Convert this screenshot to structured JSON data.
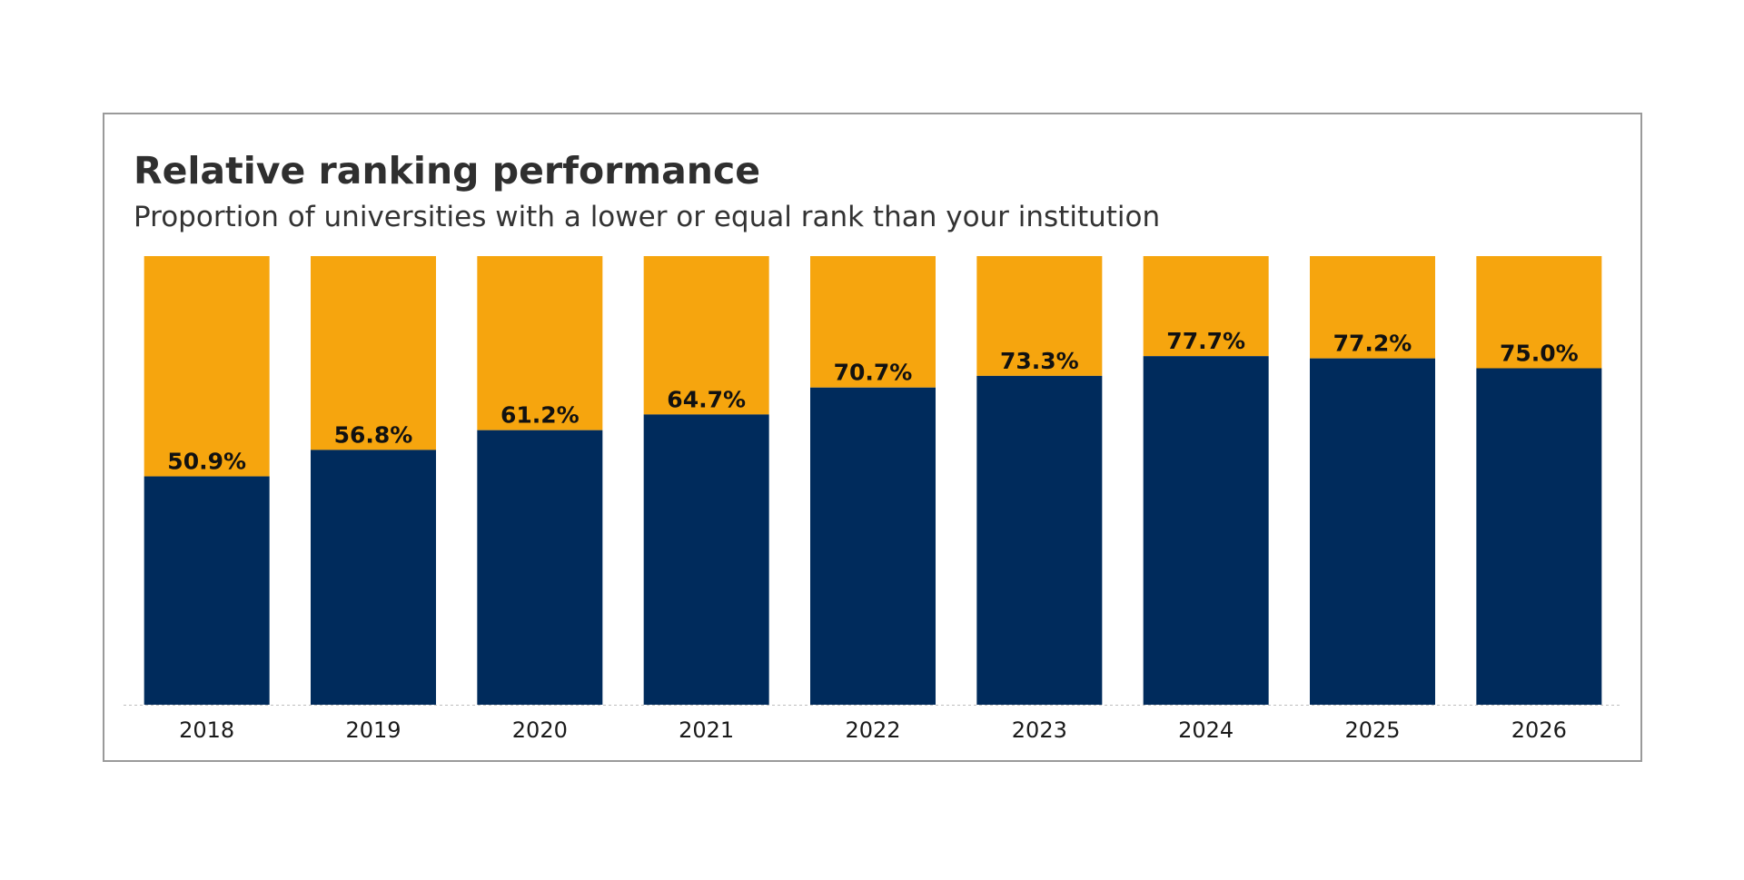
{
  "chart_data": {
    "type": "bar",
    "stacked": true,
    "title": "Relative ranking performance",
    "subtitle": "Proportion of universities with a lower or equal rank than your institution",
    "categories": [
      "2018",
      "2019",
      "2020",
      "2021",
      "2022",
      "2023",
      "2024",
      "2025",
      "2026"
    ],
    "values": [
      50.9,
      56.8,
      61.2,
      64.7,
      70.7,
      73.3,
      77.7,
      77.2,
      75.0
    ],
    "labels": [
      "50.9%",
      "56.8%",
      "61.2%",
      "64.7%",
      "70.7%",
      "73.3%",
      "77.7%",
      "77.2%",
      "75.0%"
    ],
    "remainder_total": 100,
    "ylim": [
      0,
      100
    ],
    "grid": false,
    "legend": "none",
    "colors": {
      "value": "#002b5c",
      "remainder": "#f6a50e",
      "axis": "#bdbdbd"
    }
  }
}
